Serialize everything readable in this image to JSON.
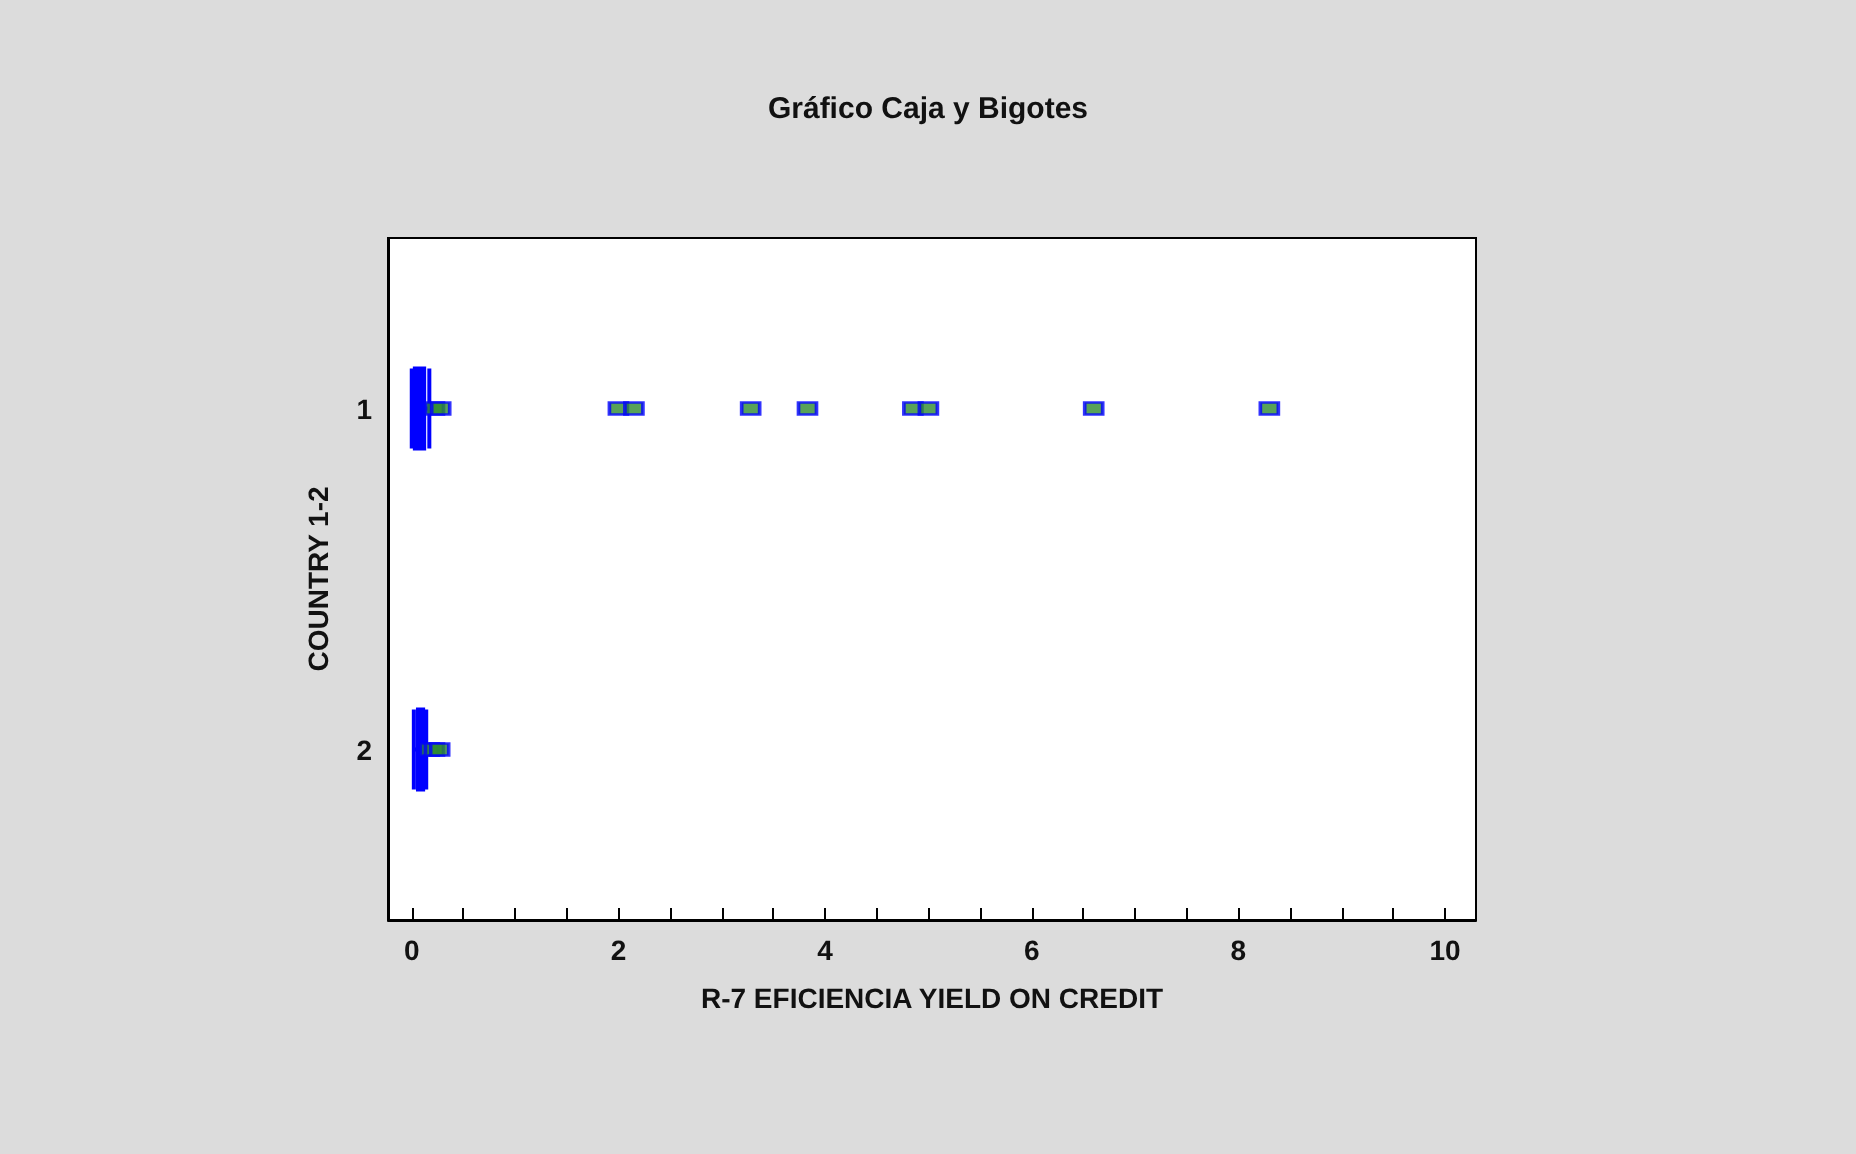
{
  "chart_data": {
    "type": "box",
    "title": "Gráfico Caja y Bigotes",
    "xlabel": "R-7 EFICIENCIA YIELD ON CREDIT",
    "ylabel": "COUNTRY 1-2",
    "orientation": "horizontal",
    "categories": [
      "1",
      "2"
    ],
    "color": "#0000ff",
    "marker": "square",
    "grid": false,
    "boxes": [
      {
        "low": 0.0,
        "q1": 0.03,
        "median": 0.08,
        "q3": 0.12,
        "high": 0.17,
        "outliers": [
          0.22,
          0.28,
          2.0,
          2.15,
          3.28,
          3.83,
          4.85,
          5.0,
          6.6,
          8.3
        ]
      },
      {
        "low": 0.02,
        "q1": 0.06,
        "median": 0.08,
        "q3": 0.11,
        "high": 0.14,
        "outliers": [
          0.17,
          0.22,
          0.27
        ]
      }
    ],
    "xlim": [
      -0.23,
      10.3
    ],
    "xticks": [
      0,
      {
        "value": 0.5,
        "label": null
      },
      {
        "value": 1,
        "label": null
      },
      {
        "value": 1.5,
        "label": null
      },
      2,
      {
        "value": 2.5,
        "label": null
      },
      {
        "value": 3,
        "label": null
      },
      {
        "value": 3.5,
        "label": null
      },
      4,
      {
        "value": 4.5,
        "label": null
      },
      {
        "value": 5,
        "label": null
      },
      {
        "value": 5.5,
        "label": null
      },
      6,
      {
        "value": 6.5,
        "label": null
      },
      {
        "value": 7,
        "label": null
      },
      {
        "value": 7.5,
        "label": null
      },
      8,
      {
        "value": 8.5,
        "label": null
      },
      {
        "value": 9,
        "label": null
      },
      {
        "value": 9.5,
        "label": null
      },
      10
    ]
  }
}
